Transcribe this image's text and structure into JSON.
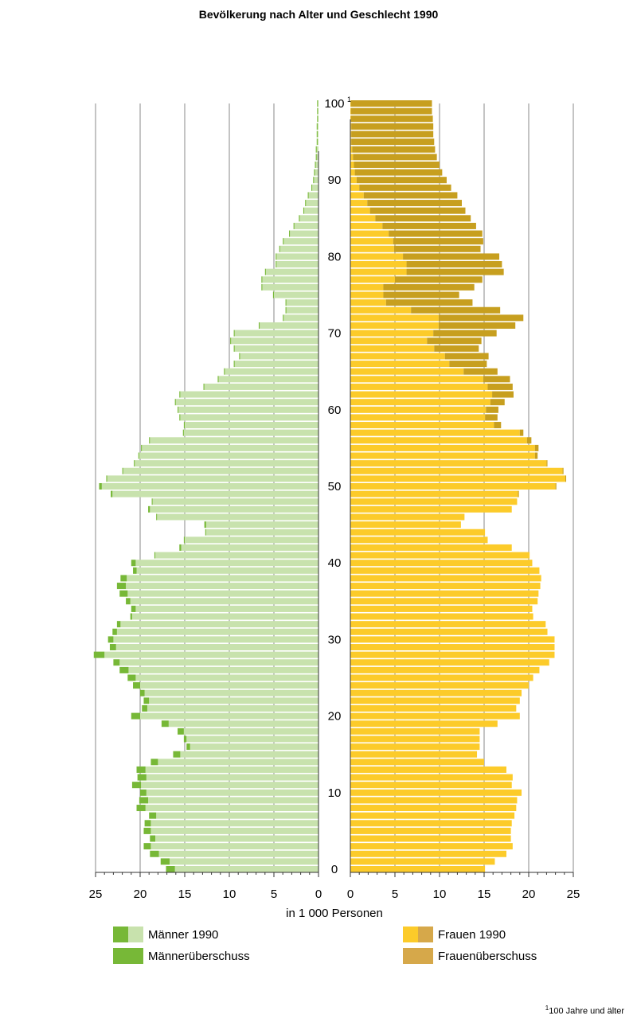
{
  "chart_data": {
    "type": "bar",
    "title": "Bevölkerung nach Alter und Geschlecht 1990",
    "xlabel": "in 1 000 Personen",
    "ylabel": "",
    "xlim": [
      0,
      25
    ],
    "x_ticks": [
      "25",
      "20",
      "15",
      "10",
      "5",
      "0",
      "0",
      "5",
      "10",
      "15",
      "20",
      "25"
    ],
    "age_ticks": [
      {
        "age": 0,
        "label": "0"
      },
      {
        "age": 10,
        "label": "10"
      },
      {
        "age": 20,
        "label": "20"
      },
      {
        "age": 30,
        "label": "30"
      },
      {
        "age": 40,
        "label": "40"
      },
      {
        "age": 50,
        "label": "50"
      },
      {
        "age": 60,
        "label": "60"
      },
      {
        "age": 70,
        "label": "70"
      },
      {
        "age": 80,
        "label": "80"
      },
      {
        "age": 90,
        "label": "90"
      },
      {
        "age": 100,
        "label": "100",
        "sup": "1"
      }
    ],
    "ages": [
      0,
      1,
      2,
      3,
      4,
      5,
      6,
      7,
      8,
      9,
      10,
      11,
      12,
      13,
      14,
      15,
      16,
      17,
      18,
      19,
      20,
      21,
      22,
      23,
      24,
      25,
      26,
      27,
      28,
      29,
      30,
      31,
      32,
      33,
      34,
      35,
      36,
      37,
      38,
      39,
      40,
      41,
      42,
      43,
      44,
      45,
      46,
      47,
      48,
      49,
      50,
      51,
      52,
      53,
      54,
      55,
      56,
      57,
      58,
      59,
      60,
      61,
      62,
      63,
      64,
      65,
      66,
      67,
      68,
      69,
      70,
      71,
      72,
      73,
      74,
      75,
      76,
      77,
      78,
      79,
      80,
      81,
      82,
      83,
      84,
      85,
      86,
      87,
      88,
      89,
      90,
      91,
      92,
      93,
      94,
      95,
      96,
      97,
      98,
      99,
      100
    ],
    "maenner": [
      16.1,
      16.7,
      17.9,
      18.8,
      18.3,
      18.8,
      18.8,
      18.2,
      19.4,
      19.1,
      19.3,
      19.9,
      19.3,
      19.4,
      18.0,
      15.5,
      14.4,
      14.8,
      15.1,
      16.8,
      20.0,
      19.2,
      19.0,
      19.5,
      20.0,
      20.5,
      21.3,
      22.3,
      24.0,
      22.7,
      23.0,
      22.6,
      22.2,
      20.9,
      20.5,
      21.1,
      21.4,
      21.6,
      21.5,
      20.4,
      20.5,
      18.3,
      15.4,
      15.0,
      12.6,
      12.6,
      18.1,
      18.9,
      18.6,
      23.1,
      24.3,
      23.7,
      21.9,
      20.6,
      20.1,
      19.8,
      18.9,
      15.1,
      15.0,
      15.5,
      15.7,
      16.0,
      15.5,
      12.8,
      11.2,
      10.5,
      9.4,
      8.8,
      9.4,
      9.8,
      9.4,
      6.6,
      3.9,
      3.6,
      3.6,
      5.0,
      6.3,
      6.3,
      5.9,
      4.7,
      4.7,
      4.3,
      3.9,
      3.2,
      2.7,
      2.1,
      1.6,
      1.4,
      1.1,
      0.7,
      0.5,
      0.4,
      0.3,
      0.2,
      0.2,
      0.1,
      0.1,
      0.1,
      0.05,
      0.05,
      0.05
    ],
    "frauen": [
      15.1,
      16.2,
      17.5,
      18.2,
      18.0,
      18.0,
      18.1,
      18.4,
      18.6,
      18.7,
      19.2,
      18.1,
      18.2,
      17.5,
      15.0,
      14.2,
      14.5,
      14.5,
      14.5,
      16.5,
      19.0,
      18.6,
      19.0,
      19.2,
      20.0,
      20.5,
      21.2,
      22.3,
      22.9,
      22.9,
      22.9,
      22.1,
      21.9,
      20.5,
      20.4,
      21.0,
      21.1,
      21.3,
      21.4,
      21.2,
      20.4,
      20.1,
      18.1,
      15.4,
      15.1,
      12.4,
      12.8,
      18.1,
      18.7,
      18.8,
      23.0,
      24.1,
      23.8,
      22.0,
      20.7,
      20.7,
      19.8,
      19.0,
      16.1,
      15.1,
      15.2,
      15.7,
      15.9,
      15.4,
      14.9,
      12.7,
      11.1,
      10.6,
      9.4,
      8.6,
      9.3,
      9.9,
      9.9,
      6.8,
      4.0,
      3.7,
      3.7,
      5.0,
      6.3,
      6.3,
      5.9,
      4.9,
      4.8,
      4.3,
      3.6,
      2.8,
      2.2,
      1.9,
      1.5,
      1.0,
      0.7,
      0.5,
      0.4,
      0.3,
      0.2,
      0.1,
      0.1,
      0.1,
      0.05,
      0.05,
      0.05
    ],
    "maennerueberschuss": [
      1.0,
      1.0,
      1.0,
      0.8,
      0.6,
      0.8,
      0.7,
      0.8,
      1.0,
      1.0,
      0.7,
      1.0,
      1.0,
      1.0,
      0.8,
      0.8,
      0.4,
      0.3,
      0.7,
      0.8,
      1.0,
      0.6,
      0.6,
      0.5,
      0.8,
      0.9,
      1.0,
      0.7,
      1.2,
      0.7,
      0.6,
      0.5,
      0.4,
      0.2,
      0.5,
      0.5,
      0.9,
      1.0,
      0.7,
      0.4,
      0.5,
      0.1,
      0.2,
      0.1,
      0.1,
      0.2,
      0.1,
      0.2,
      0.1,
      0.2,
      0.3,
      0.1,
      0.1,
      0.1,
      0.1,
      0.1,
      0.1,
      0.1,
      0.1,
      0.1,
      0.1,
      0.1,
      0.1,
      0.1,
      0.1,
      0.1,
      0.1,
      0.1,
      0.1,
      0.1,
      0.1,
      0.1,
      0.1,
      0.1,
      0.1,
      0.1,
      0.1,
      0.1,
      0.1,
      0.1,
      0.1,
      0.1,
      0.1,
      0.1,
      0.1,
      0.1,
      0.1,
      0.1,
      0.1,
      0.1,
      0.1,
      0.1,
      0.1,
      0.1,
      0.1,
      0.1,
      0.1,
      0.1,
      0.1,
      0.1,
      0.1
    ],
    "frauenueberschuss": [
      0,
      0,
      0,
      0,
      0,
      0,
      0,
      0,
      0,
      0,
      0,
      0,
      0,
      0,
      0,
      0,
      0,
      0,
      0,
      0,
      0,
      0,
      0,
      0,
      0,
      0,
      0,
      0,
      0,
      0,
      0,
      0,
      0,
      0,
      0,
      0,
      0,
      0,
      0,
      0,
      0,
      0,
      0,
      0,
      0,
      0,
      0,
      0,
      0,
      0.1,
      0.1,
      0.1,
      0.1,
      0.1,
      0.3,
      0.4,
      0.5,
      0.4,
      0.8,
      1.4,
      1.4,
      1.6,
      2.4,
      2.8,
      3.0,
      3.8,
      4.2,
      4.9,
      5.0,
      6.1,
      7.1,
      8.6,
      9.5,
      10.0,
      9.7,
      8.5,
      10.2,
      9.8,
      10.9,
      10.7,
      10.8,
      9.7,
      10.1,
      10.5,
      10.5,
      10.7,
      10.7,
      10.6,
      10.5,
      10.3,
      10.1,
      9.8,
      9.6,
      9.4,
      9.3,
      9.3,
      9.2,
      9.2,
      9.2,
      9.1,
      9.1
    ],
    "legend": [
      {
        "key": "maenner",
        "name": "Männer 1990",
        "color": "#c8e2ad",
        "accent": "#77b837"
      },
      {
        "key": "maennerueberschuss",
        "name": "Männerüberschuss",
        "color": "#77b837"
      },
      {
        "key": "frauen",
        "name": "Frauen 1990",
        "color": "#fccb2a",
        "accent": "#d6a84a"
      },
      {
        "key": "frauenueberschuss",
        "name": "Frauenüberschuss",
        "color": "#d6a84a"
      }
    ],
    "grid": true,
    "legend_placement": "bottom"
  },
  "colors": {
    "men": "#c8e2ad",
    "men_surplus": "#77b837",
    "women": "#fccb2a",
    "women_surplus": "#c79f1f",
    "grid": "#888888"
  },
  "footnote": {
    "sup": "1",
    "text": "100 Jahre und älter"
  }
}
